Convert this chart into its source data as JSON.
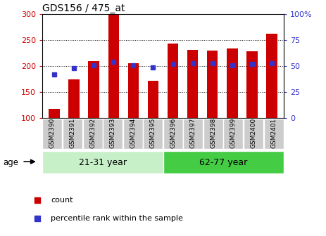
{
  "title": "GDS156 / 475_at",
  "categories": [
    "GSM2390",
    "GSM2391",
    "GSM2392",
    "GSM2393",
    "GSM2394",
    "GSM2395",
    "GSM2396",
    "GSM2397",
    "GSM2398",
    "GSM2399",
    "GSM2400",
    "GSM2401"
  ],
  "counts": [
    118,
    175,
    210,
    300,
    205,
    172,
    244,
    231,
    230,
    234,
    228,
    262
  ],
  "percentiles": [
    42,
    48,
    51,
    54,
    51,
    49,
    52,
    53,
    53,
    51,
    52,
    53
  ],
  "bar_color": "#cc0000",
  "dot_color": "#3333cc",
  "ylim_left": [
    100,
    300
  ],
  "ylim_right": [
    0,
    100
  ],
  "yticks_left": [
    100,
    150,
    200,
    250,
    300
  ],
  "yticks_right": [
    0,
    25,
    50,
    75,
    100
  ],
  "age_groups": [
    {
      "label": "21-31 year",
      "start": 0,
      "end": 6,
      "color": "#c8f0c8"
    },
    {
      "label": "62-77 year",
      "start": 6,
      "end": 12,
      "color": "#44cc44"
    }
  ],
  "age_label": "age",
  "legend_count": "count",
  "legend_percentile": "percentile rank within the sample",
  "bar_width": 0.55,
  "tick_label_color_left": "#cc0000",
  "tick_label_color_right": "#3333cc",
  "tick_bg_color": "#cccccc",
  "tick_bg_edge": "#ffffff"
}
